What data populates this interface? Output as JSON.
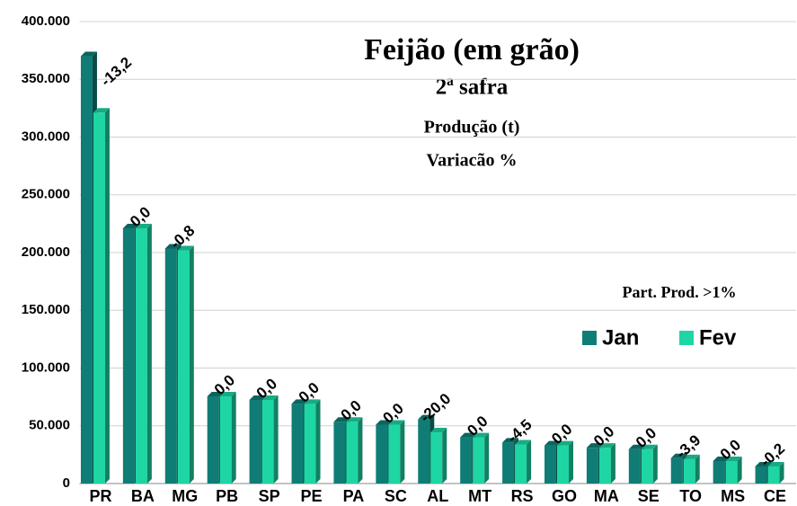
{
  "chart_data": {
    "type": "bar",
    "title": "Feijão (em grão)",
    "subtitle": "2ª safra",
    "notes": [
      "Produção (t)",
      "Variacão %",
      "Part. Prod. >1%"
    ],
    "categories": [
      "PR",
      "BA",
      "MG",
      "PB",
      "SP",
      "PE",
      "PA",
      "SC",
      "AL",
      "MT",
      "RS",
      "GO",
      "MA",
      "SE",
      "TO",
      "MS",
      "CE"
    ],
    "series": [
      {
        "name": "Jan",
        "color": "#0f7d75",
        "values": [
          370000,
          221000,
          203500,
          75500,
          72400,
          69000,
          53500,
          51000,
          55500,
          40000,
          35500,
          33000,
          31000,
          29800,
          22000,
          19500,
          14800
        ]
      },
      {
        "name": "Fev",
        "color": "#1ed6a4",
        "values": [
          321200,
          221000,
          201900,
          75500,
          72400,
          69000,
          53500,
          51000,
          44400,
          40000,
          33900,
          33000,
          31000,
          29800,
          21100,
          19500,
          14770
        ]
      }
    ],
    "annotations": [
      "-13,2",
      "0,0",
      "-0,8",
      "0,0",
      "0,0",
      "0,0",
      "0,0",
      "0,0",
      "-20,0",
      "0,0",
      "-4,5",
      "0,0",
      "0,0",
      "0,0",
      "-3,9",
      "0,0",
      "-0,2"
    ],
    "ylim": [
      0,
      400000
    ],
    "yticks": [
      0,
      {
        "value": 50000,
        "label": "50.000"
      },
      {
        "value": 100000,
        "label": "100.000"
      },
      {
        "value": 150000,
        "label": "150.000"
      },
      {
        "value": 200000,
        "label": "200.000"
      },
      {
        "value": 250000,
        "label": "250.000"
      },
      {
        "value": 300000,
        "label": "300.000"
      },
      {
        "value": 350000,
        "label": "350.000"
      },
      {
        "value": 400000,
        "label": "400.000"
      }
    ],
    "grid": true
  }
}
